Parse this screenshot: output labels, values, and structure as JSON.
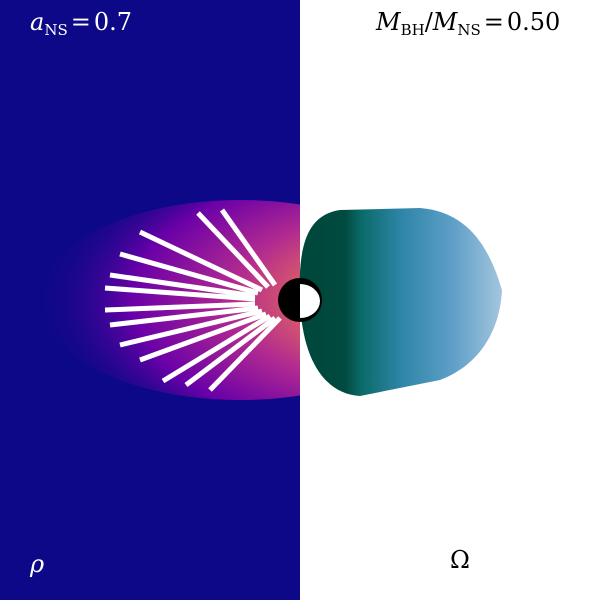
{
  "labels": {
    "spin": {
      "symbol": "a",
      "subscript": "NS",
      "operator": "=",
      "value": "0.7"
    },
    "mass_ratio": {
      "numerator": {
        "symbol": "M",
        "subscript": "BH"
      },
      "separator": "/",
      "denominator": {
        "symbol": "M",
        "subscript": "NS"
      },
      "operator": "=",
      "value": "0.50"
    },
    "left_panel": "ρ",
    "right_panel": "Ω"
  }
}
